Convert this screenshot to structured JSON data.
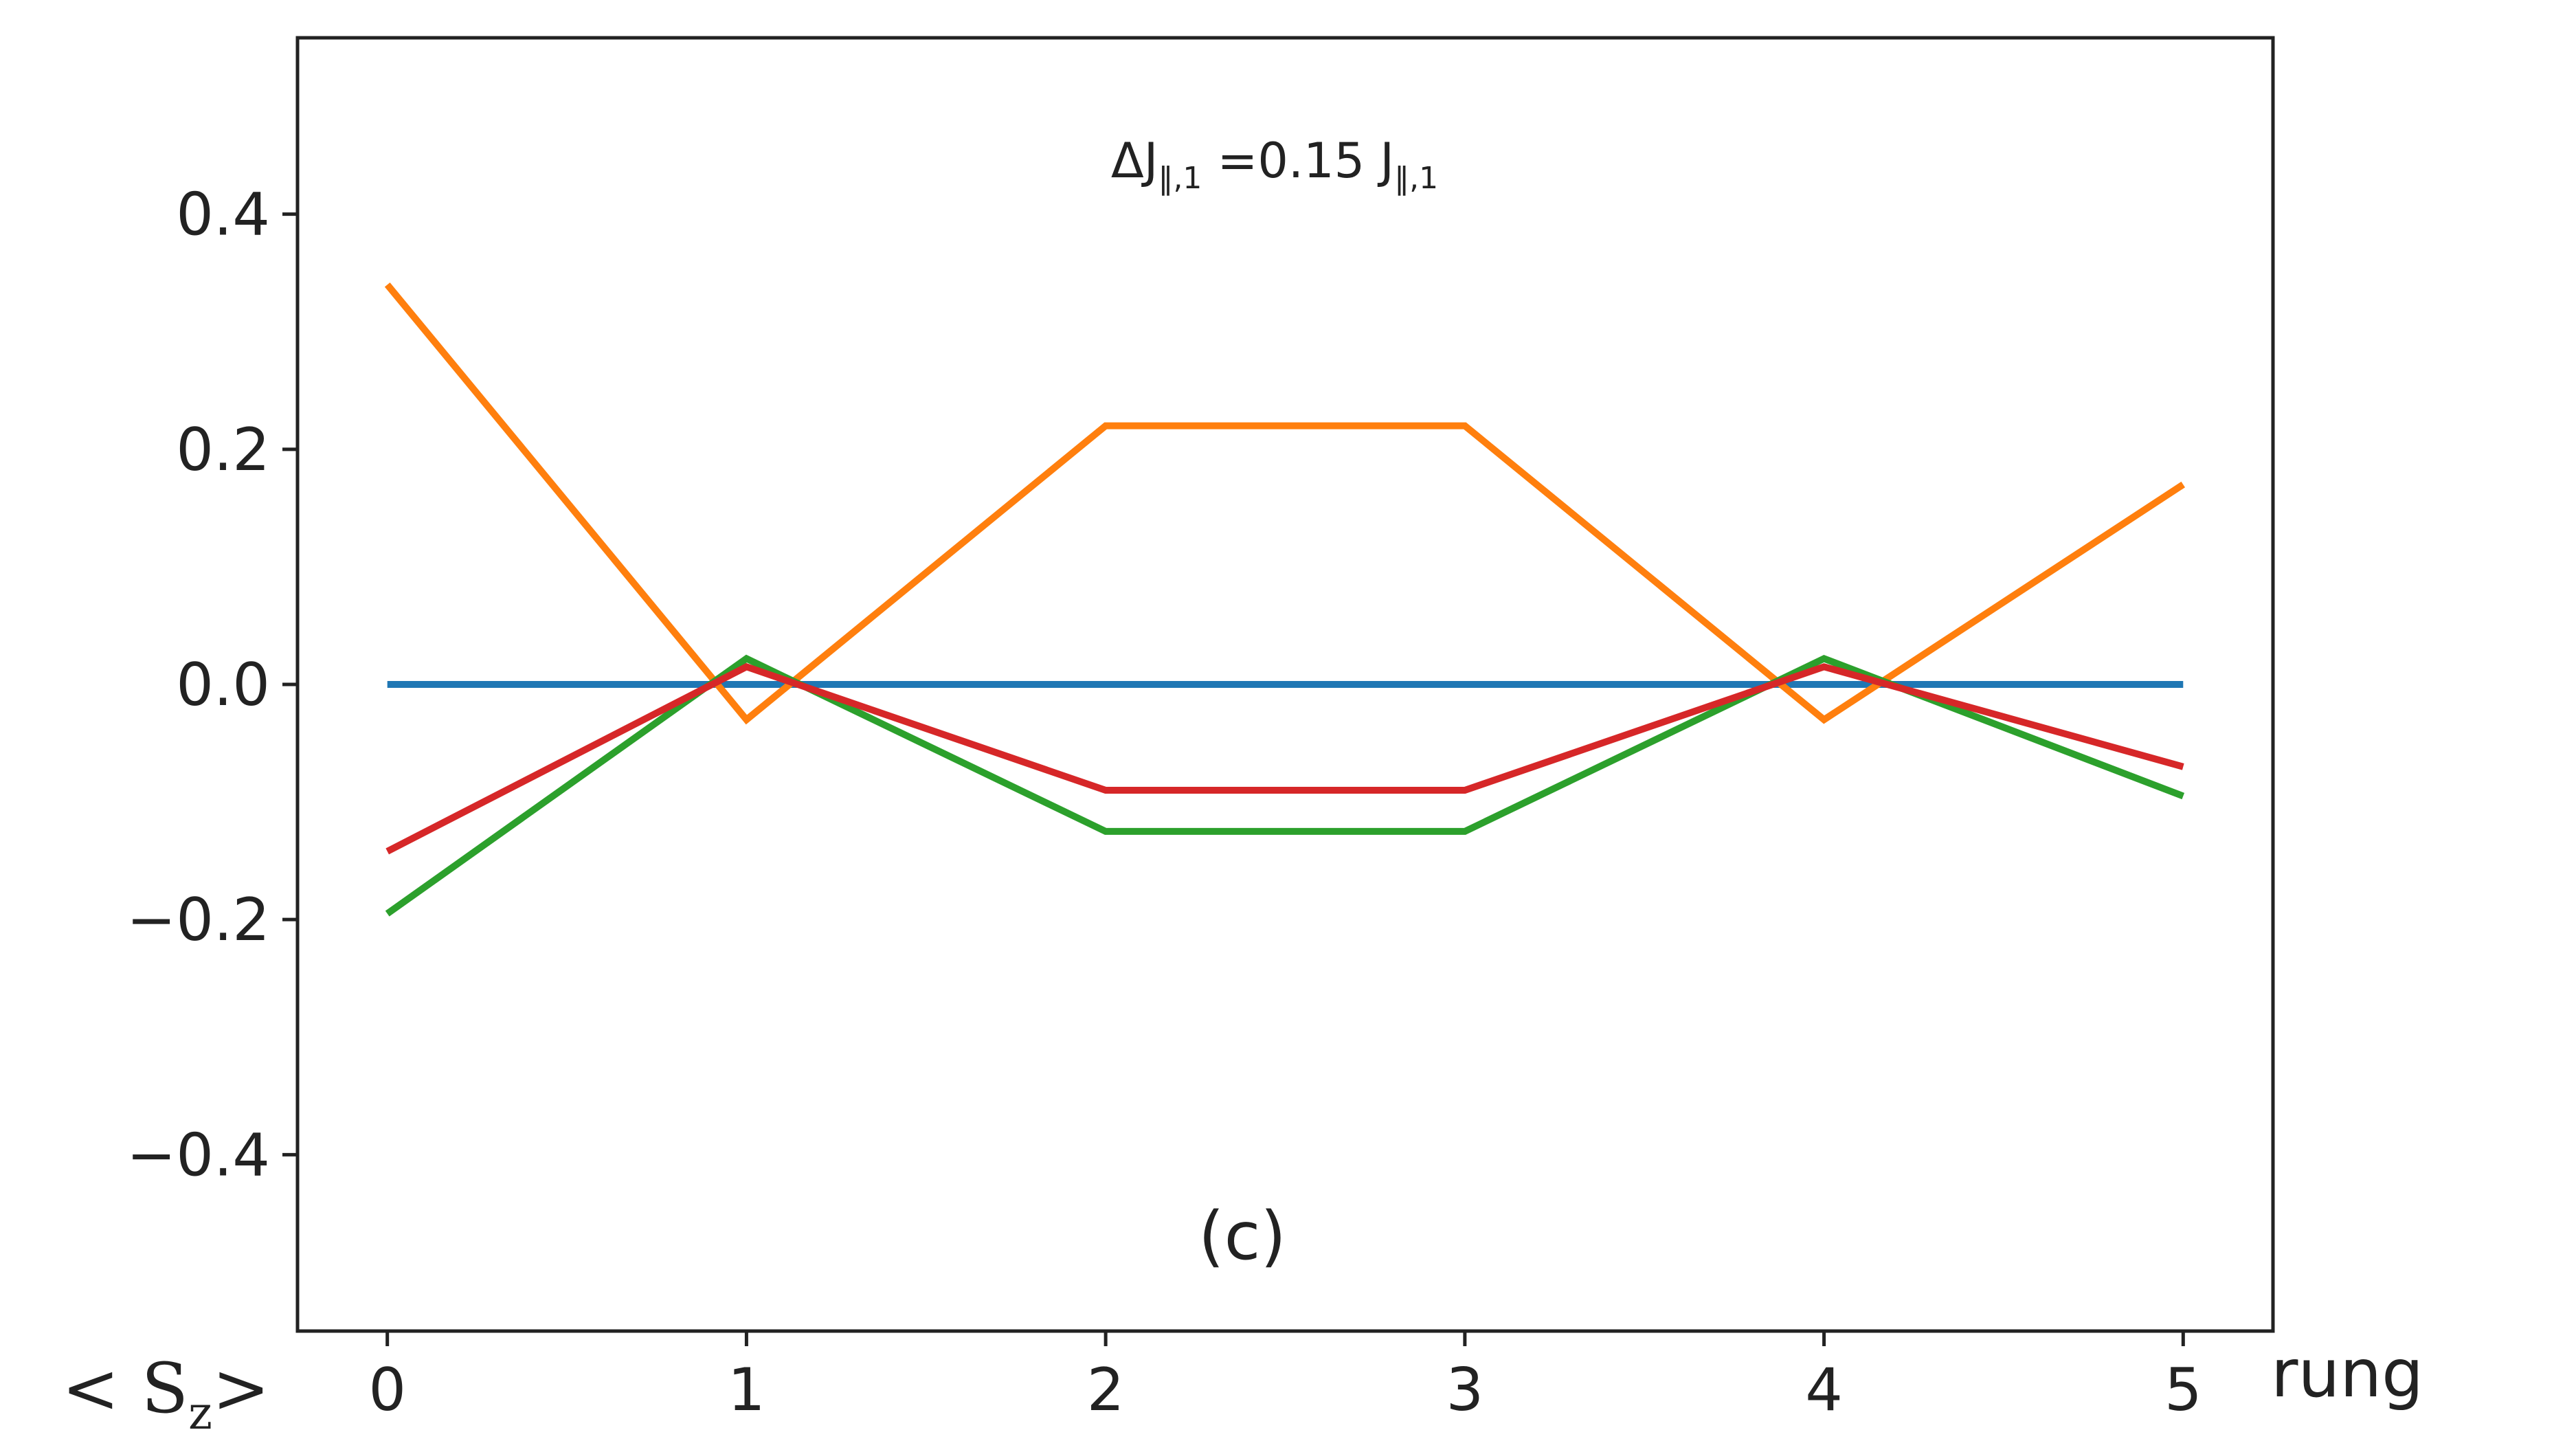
{
  "chart_data": {
    "type": "line",
    "x": [
      0,
      1,
      2,
      3,
      4,
      5
    ],
    "xticks": [
      "0",
      "1",
      "2",
      "3",
      "4",
      "5"
    ],
    "yticks": [
      "0.4",
      "0.2",
      "0.0",
      "−0.2",
      "−0.4"
    ],
    "xlim": [
      -0.25,
      5.25
    ],
    "ylim": [
      -0.55,
      0.55
    ],
    "grid": false,
    "legend": "none",
    "series": [
      {
        "color": "#1f77b4",
        "values": [
          0.0,
          0.0,
          0.0,
          0.0,
          0.0,
          0.0
        ]
      },
      {
        "color": "#ff7f0e",
        "values": [
          0.34,
          -0.03,
          0.22,
          0.22,
          -0.03,
          0.17
        ]
      },
      {
        "color": "#2ca02c",
        "values": [
          -0.195,
          0.022,
          -0.125,
          -0.125,
          0.022,
          -0.095
        ]
      },
      {
        "color": "#d62728",
        "values": [
          -0.142,
          0.015,
          -0.09,
          -0.09,
          0.015,
          -0.07
        ]
      }
    ],
    "annotation": {
      "prefix": "ΔJ",
      "sub1": "‖,1",
      "middle": " =0.15 J",
      "sub2": "‖,1"
    },
    "panel_label": "(c)",
    "ylabel": {
      "left": "< S",
      "sub": "z",
      "right": ">"
    },
    "xlabel": "rung"
  }
}
